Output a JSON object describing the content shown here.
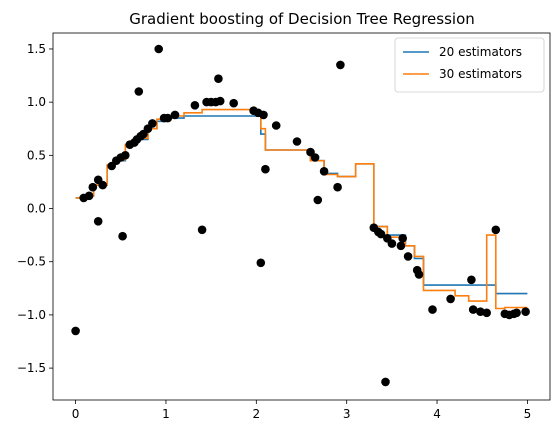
{
  "chart_data": {
    "type": "scatter",
    "title": "Gradient boosting of Decision Tree Regression",
    "xlabel": "",
    "ylabel": "",
    "xlim": [
      -0.25,
      5.25
    ],
    "ylim": [
      -1.8,
      1.65
    ],
    "xticks": [
      0,
      1,
      2,
      3,
      4,
      5
    ],
    "xtick_labels": [
      "0",
      "1",
      "2",
      "3",
      "4",
      "5"
    ],
    "yticks": [
      -1.5,
      -1.0,
      -0.5,
      0.0,
      0.5,
      1.0,
      1.5
    ],
    "ytick_labels": [
      "−1.5",
      "−1.0",
      "−0.5",
      "0.0",
      "0.5",
      "1.0",
      "1.5"
    ],
    "grid": false,
    "legend_position": "top-right",
    "colors": {
      "points": "#000000",
      "series_1": "#1f77b4",
      "series_2": "#ff7f0e",
      "axes": "#000000"
    },
    "scatter": {
      "x": [
        0.0,
        0.09,
        0.15,
        0.19,
        0.25,
        0.25,
        0.3,
        0.4,
        0.45,
        0.5,
        0.52,
        0.55,
        0.6,
        0.65,
        0.68,
        0.7,
        0.72,
        0.75,
        0.8,
        0.85,
        0.92,
        0.98,
        1.02,
        1.1,
        1.32,
        1.4,
        1.45,
        1.5,
        1.55,
        1.58,
        1.6,
        1.75,
        1.97,
        2.02,
        2.05,
        2.08,
        2.1,
        2.22,
        2.45,
        2.6,
        2.65,
        2.68,
        2.75,
        2.9,
        2.93,
        3.3,
        3.35,
        3.38,
        3.43,
        3.45,
        3.5,
        3.6,
        3.62,
        3.68,
        3.78,
        3.8,
        3.95,
        4.15,
        4.38,
        4.4,
        4.48,
        4.55,
        4.65,
        4.75,
        4.8,
        4.85,
        4.88,
        4.98
      ],
      "y": [
        -1.15,
        0.1,
        0.12,
        0.2,
        0.27,
        -0.12,
        0.22,
        0.4,
        0.45,
        0.48,
        -0.26,
        0.5,
        0.6,
        0.62,
        0.65,
        1.1,
        0.68,
        0.7,
        0.75,
        0.8,
        1.5,
        0.85,
        0.85,
        0.88,
        0.97,
        -0.2,
        1.0,
        1.0,
        1.0,
        1.22,
        1.01,
        0.99,
        0.92,
        0.9,
        -0.51,
        0.88,
        0.37,
        0.78,
        0.63,
        0.53,
        0.48,
        0.08,
        0.35,
        0.2,
        1.35,
        -0.18,
        -0.22,
        -0.24,
        -1.63,
        -0.28,
        -0.33,
        -0.35,
        -0.28,
        -0.45,
        -0.58,
        -0.62,
        -0.95,
        -0.85,
        -0.67,
        -0.95,
        -0.97,
        -0.98,
        -0.2,
        -0.99,
        -1.0,
        -0.99,
        -0.98,
        -0.97
      ]
    },
    "series": [
      {
        "name": "20 estimators",
        "x": [
          0.0,
          0.12,
          0.2,
          0.35,
          0.42,
          0.55,
          0.65,
          0.8,
          0.9,
          1.0,
          1.2,
          1.4,
          1.75,
          2.0,
          2.05,
          2.1,
          2.4,
          2.6,
          2.75,
          2.9,
          3.1,
          3.3,
          3.45,
          3.65,
          3.75,
          3.85,
          4.2,
          4.35,
          4.6,
          4.65,
          5.0
        ],
        "y": [
          0.1,
          0.12,
          0.22,
          0.4,
          0.45,
          0.6,
          0.65,
          0.75,
          0.82,
          0.85,
          0.87,
          0.87,
          0.87,
          0.87,
          0.7,
          0.55,
          0.55,
          0.45,
          0.33,
          0.3,
          0.42,
          -0.17,
          -0.25,
          -0.35,
          -0.47,
          -0.72,
          -0.72,
          -0.72,
          -0.72,
          -0.8,
          -0.8
        ]
      },
      {
        "name": "30 estimators",
        "x": [
          0.0,
          0.12,
          0.2,
          0.35,
          0.42,
          0.55,
          0.65,
          0.8,
          0.9,
          1.0,
          1.2,
          1.4,
          1.75,
          1.97,
          2.05,
          2.1,
          2.4,
          2.6,
          2.75,
          2.9,
          3.1,
          3.3,
          3.45,
          3.65,
          3.75,
          3.85,
          4.2,
          4.35,
          4.55,
          4.65,
          4.75,
          5.0
        ],
        "y": [
          0.1,
          0.12,
          0.22,
          0.41,
          0.46,
          0.6,
          0.66,
          0.75,
          0.84,
          0.87,
          0.9,
          0.93,
          0.93,
          0.9,
          0.75,
          0.55,
          0.55,
          0.45,
          0.32,
          0.3,
          0.42,
          -0.17,
          -0.27,
          -0.35,
          -0.45,
          -0.77,
          -0.82,
          -0.87,
          -0.25,
          -0.94,
          -0.93,
          -0.93
        ]
      }
    ]
  }
}
